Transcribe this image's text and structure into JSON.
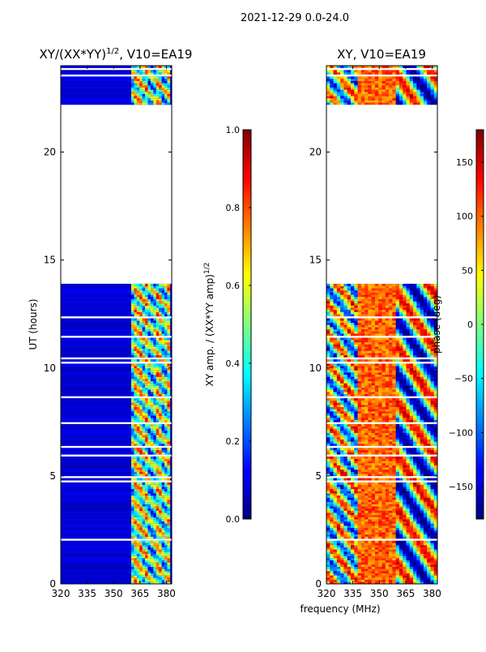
{
  "suptitle": "2021-12-29 0.0-24.0",
  "xlabel_shared": "frequency (MHz)",
  "chart_data": [
    {
      "type": "heatmap",
      "title_main": "XY/(XX*YY)",
      "title_sup": "1/2",
      "title_tail": ", V10=EA19",
      "xlim": [
        320,
        383
      ],
      "ylim": [
        0,
        24
      ],
      "xticks": [
        320,
        335,
        350,
        365,
        380
      ],
      "yticks": [
        0,
        5,
        10,
        15,
        20
      ],
      "xtick_labels": [
        "320",
        "335",
        "350",
        "365",
        "380"
      ],
      "ytick_labels": [
        "0",
        "5",
        "10",
        "15",
        "20"
      ],
      "ylabel": "UT (hours)",
      "data_ranges_hours": [
        [
          0,
          13.9
        ],
        [
          22.2,
          24
        ]
      ],
      "active_band_mhz": [
        360,
        382
      ],
      "colorbar": {
        "label_main": "XY amp. / (XX*YY amp)",
        "label_sup": "1/2",
        "range": [
          0,
          1
        ],
        "ticks": [
          0.0,
          0.2,
          0.4,
          0.6,
          0.8,
          1.0
        ],
        "tick_labels": [
          "0.0",
          "0.2",
          "0.4",
          "0.6",
          "0.8",
          "1.0"
        ]
      }
    },
    {
      "type": "heatmap",
      "title": "XY, V10=EA19",
      "xlim": [
        320,
        383
      ],
      "ylim": [
        0,
        24
      ],
      "xticks": [
        320,
        335,
        350,
        365,
        380
      ],
      "yticks": [
        0,
        5,
        10,
        15,
        20
      ],
      "xtick_labels": [
        "320",
        "335",
        "350",
        "365",
        "380"
      ],
      "ytick_labels": [
        "0",
        "5",
        "10",
        "15",
        "20"
      ],
      "data_ranges_hours": [
        [
          0,
          13.9
        ],
        [
          22.2,
          24
        ]
      ],
      "colorbar": {
        "label": "phase (deg)",
        "range": [
          -180,
          180
        ],
        "ticks": [
          -150,
          -100,
          -50,
          0,
          50,
          100,
          150
        ],
        "tick_labels": [
          "−150",
          "−100",
          "−50",
          "0",
          "50",
          "100",
          "150"
        ]
      }
    }
  ],
  "colormap": {
    "name": "jet",
    "stops": [
      "#00007f",
      "#0000ff",
      "#0080ff",
      "#00ffff",
      "#80ff80",
      "#ffff00",
      "#ff8000",
      "#ff0000",
      "#7f0000"
    ]
  },
  "gap_color": "#ffffff",
  "frame_color": "#000000"
}
